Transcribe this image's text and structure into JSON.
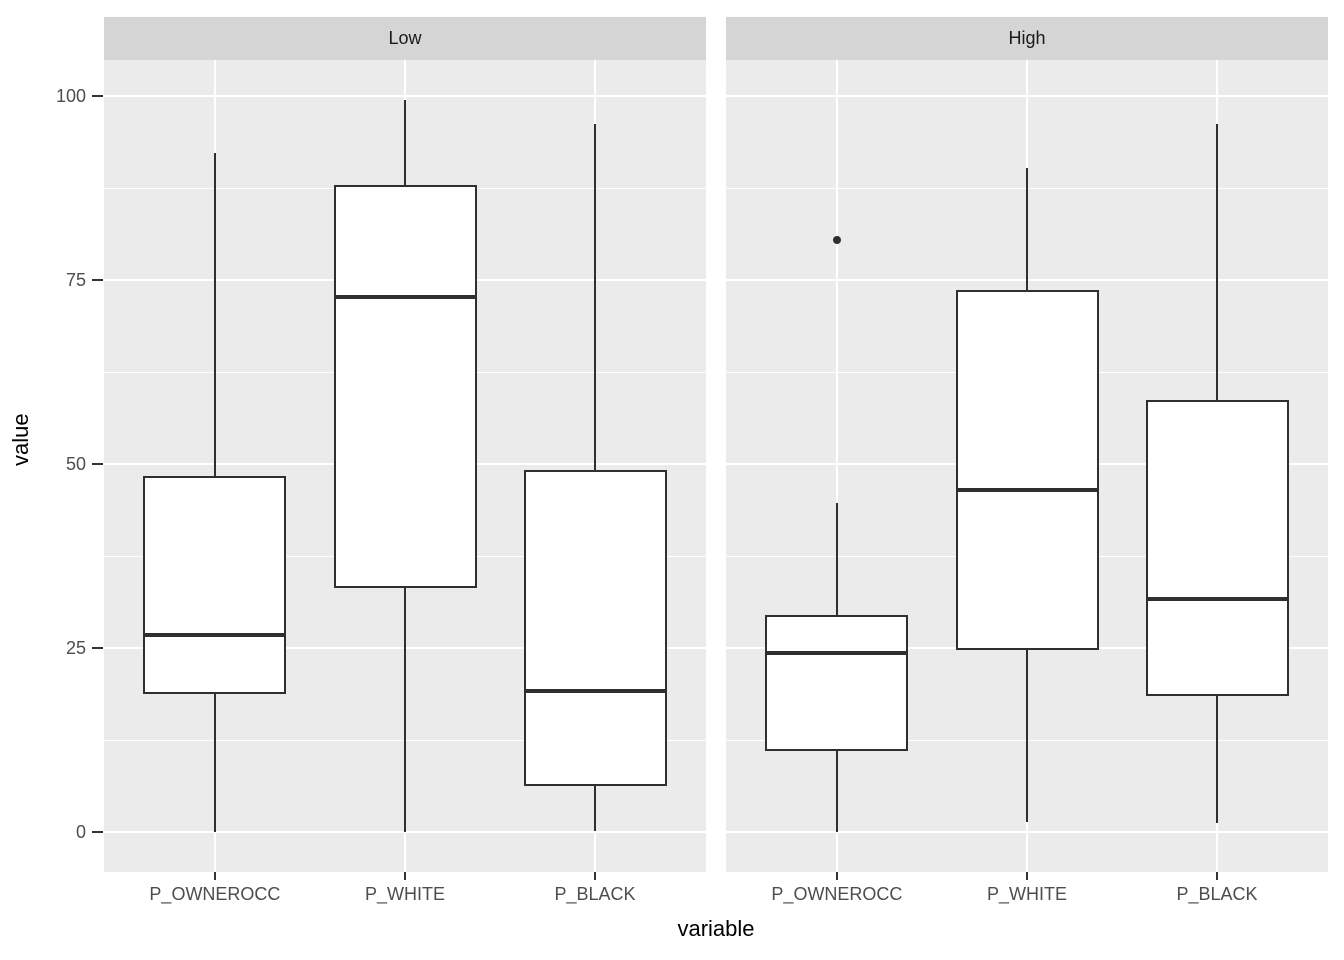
{
  "chart_data": {
    "type": "boxplot",
    "title": "",
    "xlabel": "variable",
    "ylabel": "value",
    "categories": [
      "P_OWNEROCC",
      "P_WHITE",
      "P_BLACK"
    ],
    "y_ticks": [
      0,
      25,
      50,
      75,
      100
    ],
    "y_tick_labels": [
      "0",
      "25",
      "50",
      "75",
      "100"
    ],
    "ylim": [
      -5.4,
      104.9
    ],
    "grid": {
      "major_y": [
        0,
        25,
        50,
        75,
        100
      ],
      "minor_y": [
        12.5,
        37.5,
        62.5,
        87.5
      ],
      "major_x_at_categories": true
    },
    "legend_position": "none",
    "facets": [
      {
        "label": "Low",
        "boxes": [
          {
            "category": "P_OWNEROCC",
            "whisker_low": 0,
            "q1": 18.8,
            "median": 26.8,
            "q3": 48.4,
            "whisker_high": 92.3,
            "outliers": []
          },
          {
            "category": "P_WHITE",
            "whisker_low": 0,
            "q1": 33.2,
            "median": 72.7,
            "q3": 87.9,
            "whisker_high": 99.5,
            "outliers": []
          },
          {
            "category": "P_BLACK",
            "whisker_low": 0.2,
            "q1": 6.3,
            "median": 19.2,
            "q3": 49.2,
            "whisker_high": 96.2,
            "outliers": []
          }
        ]
      },
      {
        "label": "High",
        "boxes": [
          {
            "category": "P_OWNEROCC",
            "whisker_low": 0,
            "q1": 11.1,
            "median": 24.3,
            "q3": 29.5,
            "whisker_high": 44.7,
            "outliers": [
              80.5
            ]
          },
          {
            "category": "P_WHITE",
            "whisker_low": 1.4,
            "q1": 24.8,
            "median": 46.5,
            "q3": 73.6,
            "whisker_high": 90.2,
            "outliers": []
          },
          {
            "category": "P_BLACK",
            "whisker_low": 1.2,
            "q1": 18.5,
            "median": 31.7,
            "q3": 58.7,
            "whisker_high": 96.2,
            "outliers": []
          }
        ]
      }
    ],
    "colors": {
      "panel_background": "#ebebeb",
      "strip_background": "#d5d5d5",
      "gridline": "#ffffff",
      "box_stroke": "#2f2f2f",
      "box_fill": "#ffffff",
      "tick_label": "#4d4d4d",
      "axis_title": "#000000",
      "strip_text": "#1a1a1a"
    }
  }
}
